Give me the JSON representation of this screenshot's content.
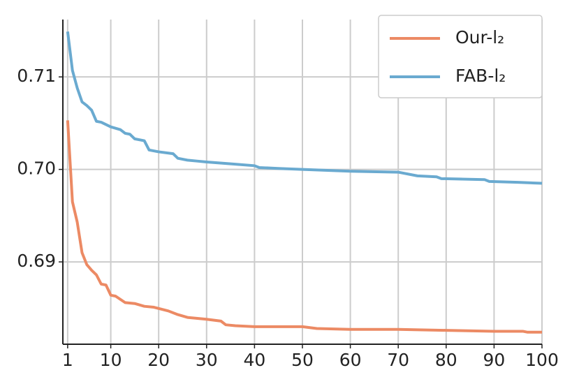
{
  "chart_data": {
    "type": "line",
    "xlim": [
      0,
      100
    ],
    "xticks": [
      1,
      10,
      20,
      30,
      40,
      50,
      60,
      70,
      80,
      90,
      100
    ],
    "ylim": [
      0.6811,
      0.7162
    ],
    "yticks": [
      0.69,
      {
        "value": 0.7,
        "label": "0.70"
      },
      0.71
    ],
    "grid": true,
    "legend": "upper right",
    "series": [
      {
        "name": "Our-l₂",
        "color": "#ec8a64",
        "x": [
          1,
          2,
          3,
          4,
          5,
          6,
          7,
          8,
          9,
          10,
          11,
          13,
          15,
          17,
          19,
          22,
          24,
          26,
          30,
          33,
          34,
          36,
          40,
          50,
          53,
          60,
          70,
          80,
          90,
          96,
          97,
          100
        ],
        "values": [
          0.7053,
          0.6965,
          0.6943,
          0.691,
          0.6897,
          0.6891,
          0.6886,
          0.6876,
          0.6875,
          0.6864,
          0.6863,
          0.6856,
          0.6855,
          0.6852,
          0.6851,
          0.6847,
          0.6843,
          0.684,
          0.6838,
          0.6836,
          0.6832,
          0.6831,
          0.683,
          0.683,
          0.6828,
          0.6827,
          0.6827,
          0.6826,
          0.6825,
          0.6825,
          0.6824,
          0.6824
        ]
      },
      {
        "name": "FAB-l₂",
        "color": "#6aaad0",
        "x": [
          1,
          2,
          3,
          4,
          5,
          6,
          7,
          8,
          10,
          12,
          13,
          14,
          15,
          17,
          18,
          20,
          23,
          24,
          26,
          28,
          30,
          35,
          40,
          41,
          45,
          50,
          60,
          70,
          74,
          78,
          79,
          88,
          89,
          95,
          100
        ],
        "values": [
          0.7149,
          0.7107,
          0.7088,
          0.7073,
          0.7069,
          0.7064,
          0.7052,
          0.7051,
          0.7046,
          0.7043,
          0.7039,
          0.7038,
          0.7033,
          0.7031,
          0.7021,
          0.7019,
          0.7017,
          0.7012,
          0.701,
          0.7009,
          0.7008,
          0.7006,
          0.7004,
          0.7002,
          0.7001,
          0.7,
          0.6998,
          0.6997,
          0.6993,
          0.6992,
          0.699,
          0.6989,
          0.6987,
          0.6986,
          0.6985
        ]
      }
    ]
  }
}
